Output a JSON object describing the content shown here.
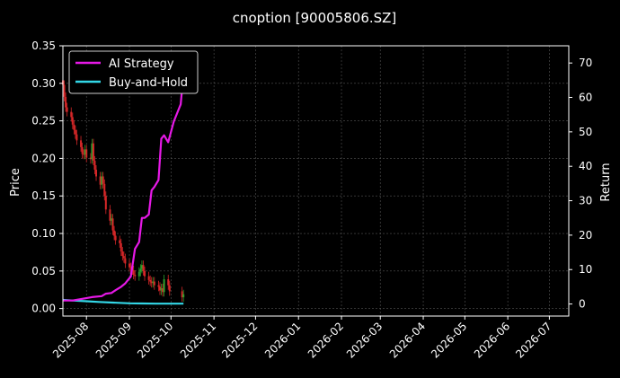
{
  "chart_data": {
    "type": "line",
    "title": "cnoption [90005806.SZ]",
    "ylabel_left": "Price",
    "ylabel_right": "Return",
    "xlabel": "",
    "x_ticks": [
      "2025-08",
      "2025-09",
      "2025-10",
      "2025-11",
      "2025-12",
      "2026-01",
      "2026-02",
      "2026-03",
      "2026-04",
      "2026-05",
      "2026-06",
      "2026-07"
    ],
    "x_range": [
      "2025-07-15",
      "2026-07-15"
    ],
    "ylim_left": [
      -0.01,
      0.35
    ],
    "ylim_right": [
      -3.5,
      75
    ],
    "yticks_left": [
      "0.00",
      "0.05",
      "0.10",
      "0.15",
      "0.20",
      "0.25",
      "0.30",
      "0.35"
    ],
    "yticks_right": [
      "0",
      "10",
      "20",
      "30",
      "40",
      "50",
      "60",
      "70"
    ],
    "grid": true,
    "legend_position": "top-left",
    "colors": {
      "up": "#2ca02c",
      "down": "#d62728",
      "ai": "#e619e6",
      "bh": "#33d6e6",
      "background": "#000000"
    },
    "series": [
      {
        "name": "AI Strategy",
        "color": "#e619e6",
        "x": [
          "2025-07-15",
          "2025-07-22",
          "2025-07-29",
          "2025-08-05",
          "2025-08-12",
          "2025-08-15",
          "2025-08-19",
          "2025-08-22",
          "2025-08-26",
          "2025-08-29",
          "2025-09-02",
          "2025-09-05",
          "2025-09-08",
          "2025-09-10",
          "2025-09-12",
          "2025-09-15",
          "2025-09-17",
          "2025-09-19",
          "2025-09-22",
          "2025-09-24",
          "2025-09-26",
          "2025-09-29",
          "2025-10-01",
          "2025-10-03",
          "2025-10-06",
          "2025-10-08",
          "2025-10-10"
        ],
        "values": [
          1,
          1,
          1.5,
          2,
          2.3,
          3,
          3.2,
          4,
          5,
          6,
          8,
          16,
          18,
          25,
          25,
          26,
          33,
          34,
          36,
          48,
          49,
          47,
          50,
          53,
          56,
          58,
          67
        ]
      },
      {
        "name": "Buy-and-Hold",
        "color": "#33d6e6",
        "x": [
          "2025-07-15",
          "2025-07-22",
          "2025-08-01",
          "2025-08-10",
          "2025-08-20",
          "2025-09-01",
          "2025-09-10",
          "2025-09-20",
          "2025-10-01",
          "2025-10-10"
        ],
        "values": [
          1.2,
          1.0,
          0.8,
          0.6,
          0.4,
          0.2,
          0.15,
          0.1,
          0.1,
          0.1
        ]
      }
    ],
    "candles": {
      "x": [
        "2025-07-15",
        "2025-07-16",
        "2025-07-17",
        "2025-07-18",
        "2025-07-21",
        "2025-07-22",
        "2025-07-23",
        "2025-07-24",
        "2025-07-25",
        "2025-07-28",
        "2025-07-29",
        "2025-07-30",
        "2025-07-31",
        "2025-08-01",
        "2025-08-04",
        "2025-08-05",
        "2025-08-06",
        "2025-08-07",
        "2025-08-08",
        "2025-08-11",
        "2025-08-12",
        "2025-08-13",
        "2025-08-14",
        "2025-08-15",
        "2025-08-18",
        "2025-08-19",
        "2025-08-20",
        "2025-08-21",
        "2025-08-22",
        "2025-08-25",
        "2025-08-26",
        "2025-08-27",
        "2025-08-28",
        "2025-08-29",
        "2025-09-01",
        "2025-09-02",
        "2025-09-03",
        "2025-09-04",
        "2025-09-05",
        "2025-09-08",
        "2025-09-09",
        "2025-09-10",
        "2025-09-11",
        "2025-09-12",
        "2025-09-15",
        "2025-09-16",
        "2025-09-17",
        "2025-09-18",
        "2025-09-19",
        "2025-09-22",
        "2025-09-23",
        "2025-09-24",
        "2025-09-25",
        "2025-09-26",
        "2025-09-29",
        "2025-09-30",
        "2025-10-09",
        "2025-10-10"
      ],
      "close": [
        0.298,
        0.282,
        0.268,
        0.262,
        0.255,
        0.245,
        0.238,
        0.232,
        0.224,
        0.215,
        0.206,
        0.205,
        0.212,
        0.201,
        0.199,
        0.22,
        0.197,
        0.185,
        0.176,
        0.165,
        0.176,
        0.166,
        0.15,
        0.132,
        0.117,
        0.12,
        0.104,
        0.097,
        0.091,
        0.087,
        0.076,
        0.07,
        0.067,
        0.06,
        0.055,
        0.054,
        0.051,
        0.045,
        0.043,
        0.049,
        0.053,
        0.058,
        0.05,
        0.043,
        0.038,
        0.036,
        0.034,
        0.036,
        0.031,
        0.029,
        0.024,
        0.027,
        0.022,
        0.039,
        0.031,
        0.023,
        0.015,
        0.019
      ]
    }
  }
}
